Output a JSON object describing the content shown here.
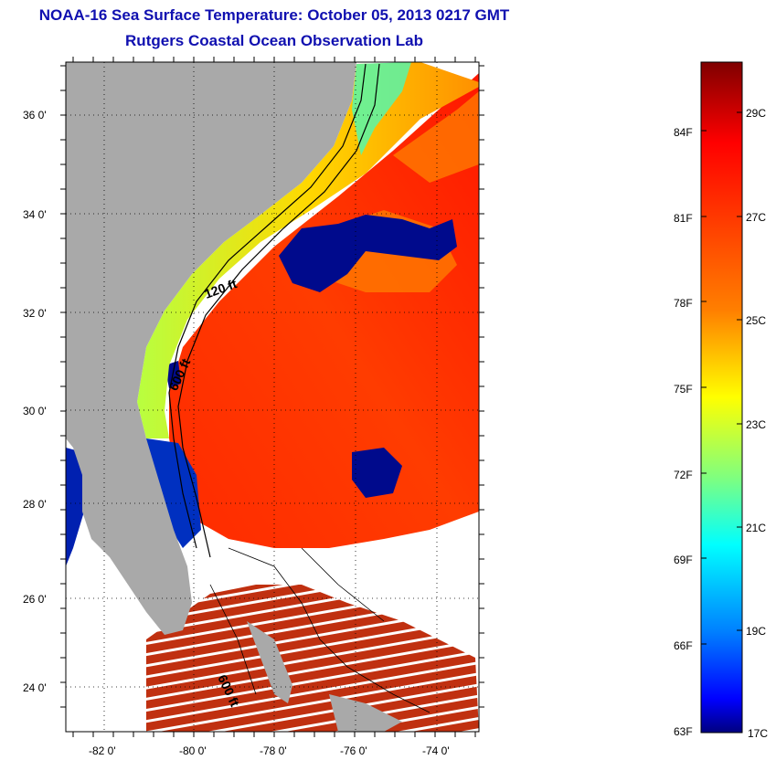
{
  "title": {
    "line1": "NOAA-16 Sea Surface Temperature:  October 05, 2013 0217 GMT",
    "line2": "Rutgers Coastal Ocean Observation Lab"
  },
  "map": {
    "lat_labels": [
      "36 0'",
      "34 0'",
      "32 0'",
      "30 0'",
      "28 0'",
      "26 0'",
      "24 0'"
    ],
    "lon_labels": [
      "-82 0'",
      "-80 0'",
      "-78 0'",
      "-76 0'",
      "-74 0'"
    ],
    "isobath_labels": [
      "120 ft",
      "600 ft",
      "600 ft"
    ],
    "colors": {
      "land": "#a9a9a9",
      "no_data": "#ffffff",
      "grid": "#000000"
    }
  },
  "colorbar": {
    "fahrenheit_labels": [
      "84F",
      "81F",
      "78F",
      "75F",
      "72F",
      "69F",
      "66F",
      "63F"
    ],
    "celsius_labels": [
      "29C",
      "27C",
      "25C",
      "23C",
      "21C",
      "19C",
      "17C"
    ],
    "colormap": "jet",
    "colors": [
      "#7f0000",
      "#ff0000",
      "#ff7f00",
      "#ffff00",
      "#7fff7f",
      "#00ffff",
      "#007fff",
      "#0000ff",
      "#00007f"
    ]
  }
}
